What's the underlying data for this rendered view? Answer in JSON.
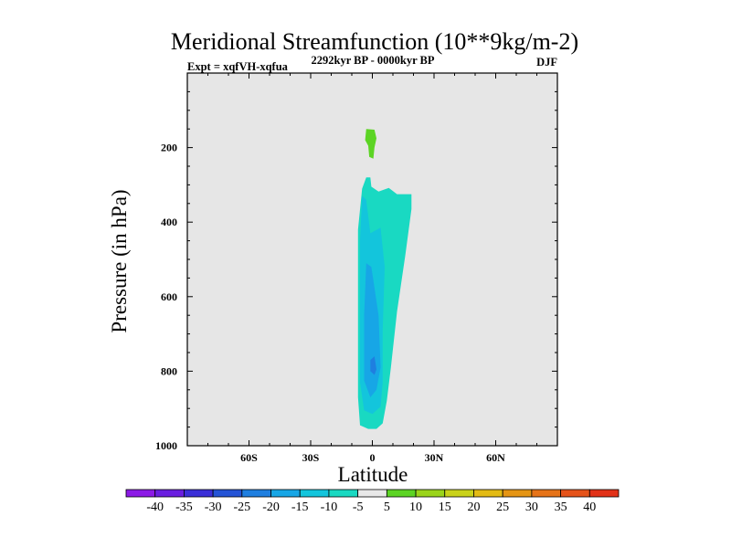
{
  "chart_data": {
    "type": "contour",
    "title": "Meridional Streamfunction (10**9kg/m-2)",
    "subtitle": "2292kyr BP - 0000kyr BP",
    "experiment": "Expt = xqfVH-xqfua",
    "season": "DJF",
    "xlabel": "Latitude",
    "ylabel": "Pressure (in hPa)",
    "xlim": [
      -90,
      90
    ],
    "ylim": [
      1000,
      0
    ],
    "x_ticks": [
      {
        "value": -60,
        "label": "60S"
      },
      {
        "value": -30,
        "label": "30S"
      },
      {
        "value": 0,
        "label": "0"
      },
      {
        "value": 30,
        "label": "30N"
      },
      {
        "value": 60,
        "label": "60N"
      }
    ],
    "y_ticks": [
      {
        "value": 200,
        "label": "200"
      },
      {
        "value": 400,
        "label": "400"
      },
      {
        "value": 600,
        "label": "600"
      },
      {
        "value": 800,
        "label": "800"
      },
      {
        "value": 1000,
        "label": "1000"
      }
    ],
    "colorbar": {
      "levels": [
        "-40",
        "-35",
        "-30",
        "-25",
        "-20",
        "-15",
        "-10",
        "-5",
        "5",
        "10",
        "15",
        "20",
        "25",
        "30",
        "35",
        "40"
      ],
      "colors": [
        "#8c1ae6",
        "#6a1ee0",
        "#3b2fd8",
        "#2554d6",
        "#1f7fe0",
        "#17a6e6",
        "#13c5dc",
        "#19d9c2",
        "#e8e8e8",
        "#5cd424",
        "#9ad41a",
        "#c9d21a",
        "#e3bb14",
        "#e59514",
        "#e67318",
        "#e5531a",
        "#e23218"
      ]
    },
    "regions": [
      {
        "name": "minus-5-to-minus-10",
        "color": "#19d9c2",
        "points": [
          [
            -3,
            280
          ],
          [
            -1,
            280
          ],
          [
            -0.5,
            305
          ],
          [
            3,
            318
          ],
          [
            8,
            308
          ],
          [
            12,
            325
          ],
          [
            19,
            325
          ],
          [
            19,
            365
          ],
          [
            16,
            490
          ],
          [
            12,
            640
          ],
          [
            9,
            790
          ],
          [
            7,
            880
          ],
          [
            5,
            940
          ],
          [
            2,
            955
          ],
          [
            -2,
            955
          ],
          [
            -6,
            945
          ],
          [
            -7,
            870
          ],
          [
            -7,
            720
          ],
          [
            -7,
            560
          ],
          [
            -7,
            420
          ],
          [
            -5,
            310
          ]
        ]
      },
      {
        "name": "minus-10-to-minus-15",
        "color": "#13c5dc",
        "points": [
          [
            -5,
            330
          ],
          [
            -3,
            340
          ],
          [
            -1,
            430
          ],
          [
            4,
            415
          ],
          [
            6,
            520
          ],
          [
            5,
            690
          ],
          [
            5,
            830
          ],
          [
            4,
            895
          ],
          [
            0,
            915
          ],
          [
            -4,
            905
          ],
          [
            -6,
            830
          ],
          [
            -6,
            640
          ],
          [
            -6,
            450
          ]
        ]
      },
      {
        "name": "minus-15-to-minus-20",
        "color": "#17a6e6",
        "points": [
          [
            -3,
            510
          ],
          [
            -0.5,
            520
          ],
          [
            3,
            650
          ],
          [
            4,
            790
          ],
          [
            2,
            850
          ],
          [
            -1,
            870
          ],
          [
            -4,
            825
          ],
          [
            -4,
            650
          ]
        ]
      },
      {
        "name": "minus-20-to-minus-25",
        "color": "#1f7fe0",
        "points": [
          [
            -1,
            770
          ],
          [
            1,
            760
          ],
          [
            2,
            795
          ],
          [
            1,
            810
          ],
          [
            -1,
            800
          ]
        ]
      },
      {
        "name": "plus-5-to-plus-10",
        "color": "#5cd424",
        "points": [
          [
            -3,
            150
          ],
          [
            1,
            152
          ],
          [
            2,
            175
          ],
          [
            1,
            200
          ],
          [
            0.5,
            230
          ],
          [
            -1.5,
            225
          ],
          [
            -2,
            195
          ],
          [
            -3.5,
            180
          ]
        ]
      }
    ]
  }
}
